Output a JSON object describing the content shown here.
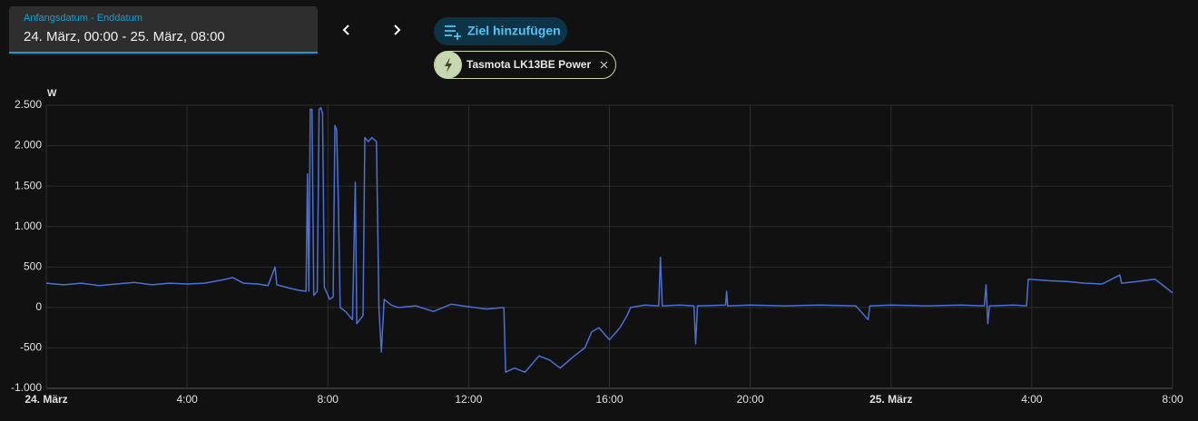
{
  "header": {
    "date_label": "Anfangsdatum - Enddatum",
    "date_value": "24. März, 00:00 - 25. März, 08:00",
    "add_target": "Ziel hinzufügen"
  },
  "chart_data": {
    "type": "line",
    "y_unit": "W",
    "x": [
      0,
      0.5,
      1,
      1.5,
      2,
      2.5,
      3,
      3.5,
      4,
      4.5,
      5,
      5.3,
      5.6,
      6,
      6.3,
      6.5,
      6.55,
      6.9,
      7.2,
      7.38,
      7.42,
      7.46,
      7.5,
      7.55,
      7.6,
      7.7,
      7.75,
      7.8,
      7.85,
      7.9,
      8.05,
      8.15,
      8.2,
      8.25,
      8.3,
      8.35,
      8.5,
      8.7,
      8.78,
      8.82,
      9,
      9.05,
      9.15,
      9.25,
      9.38,
      9.45,
      9.52,
      9.6,
      9.8,
      10,
      10.5,
      11,
      11.5,
      12,
      12.5,
      13,
      13.05,
      13.3,
      13.6,
      14,
      14.3,
      14.6,
      15,
      15.3,
      15.5,
      15.7,
      16,
      16.3,
      16.5,
      16.6,
      17,
      17.4,
      17.45,
      17.5,
      18,
      18.4,
      18.45,
      18.5,
      19.3,
      19.33,
      19.36,
      20,
      21,
      22,
      23,
      23.35,
      23.4,
      24,
      25,
      26,
      26.65,
      26.7,
      26.75,
      26.8,
      27.5,
      27.85,
      27.9,
      28.5,
      29,
      29.5,
      30,
      30.5,
      30.55,
      31,
      31.5,
      31.8,
      32
    ],
    "series": [
      {
        "name": "Tasmota LK13BE Power",
        "color": "#4a70d4",
        "values": [
          300,
          280,
          300,
          270,
          290,
          310,
          280,
          300,
          290,
          300,
          340,
          370,
          300,
          290,
          270,
          500,
          280,
          240,
          210,
          200,
          1650,
          200,
          2450,
          2450,
          150,
          200,
          2450,
          2470,
          2400,
          250,
          100,
          130,
          2250,
          2200,
          1250,
          0,
          -50,
          -150,
          1550,
          -200,
          -100,
          2100,
          2050,
          2100,
          2050,
          0,
          -550,
          100,
          30,
          0,
          20,
          -50,
          40,
          10,
          -20,
          0,
          -800,
          -750,
          -800,
          -600,
          -650,
          -750,
          -600,
          -500,
          -300,
          -250,
          -400,
          -250,
          -100,
          0,
          30,
          20,
          620,
          20,
          30,
          20,
          -450,
          20,
          30,
          200,
          20,
          30,
          20,
          30,
          20,
          -150,
          20,
          30,
          20,
          30,
          20,
          280,
          -200,
          20,
          30,
          20,
          350,
          330,
          320,
          300,
          290,
          400,
          300,
          320,
          350,
          250,
          180
        ]
      }
    ],
    "xlim": [
      0,
      32
    ],
    "xticks": [
      {
        "value": 0,
        "label": "24. März"
      },
      {
        "value": 4,
        "label": "4:00"
      },
      {
        "value": 8,
        "label": "8:00"
      },
      {
        "value": 12,
        "label": "12:00"
      },
      {
        "value": 16,
        "label": "16:00"
      },
      {
        "value": 20,
        "label": "20:00"
      },
      {
        "value": 24,
        "label": "25. März"
      },
      {
        "value": 28,
        "label": "4:00"
      },
      {
        "value": 32,
        "label": "8:00"
      }
    ],
    "ylim": [
      -1000,
      2500
    ],
    "yticks": [
      {
        "value": -1000,
        "label": "-1.000"
      },
      -500,
      0,
      500,
      {
        "value": 1000,
        "label": "1.000"
      },
      {
        "value": 1500,
        "label": "1.500"
      },
      {
        "value": 2000,
        "label": "2.000"
      },
      {
        "value": 2500,
        "label": "2.500"
      }
    ],
    "grid": true
  }
}
